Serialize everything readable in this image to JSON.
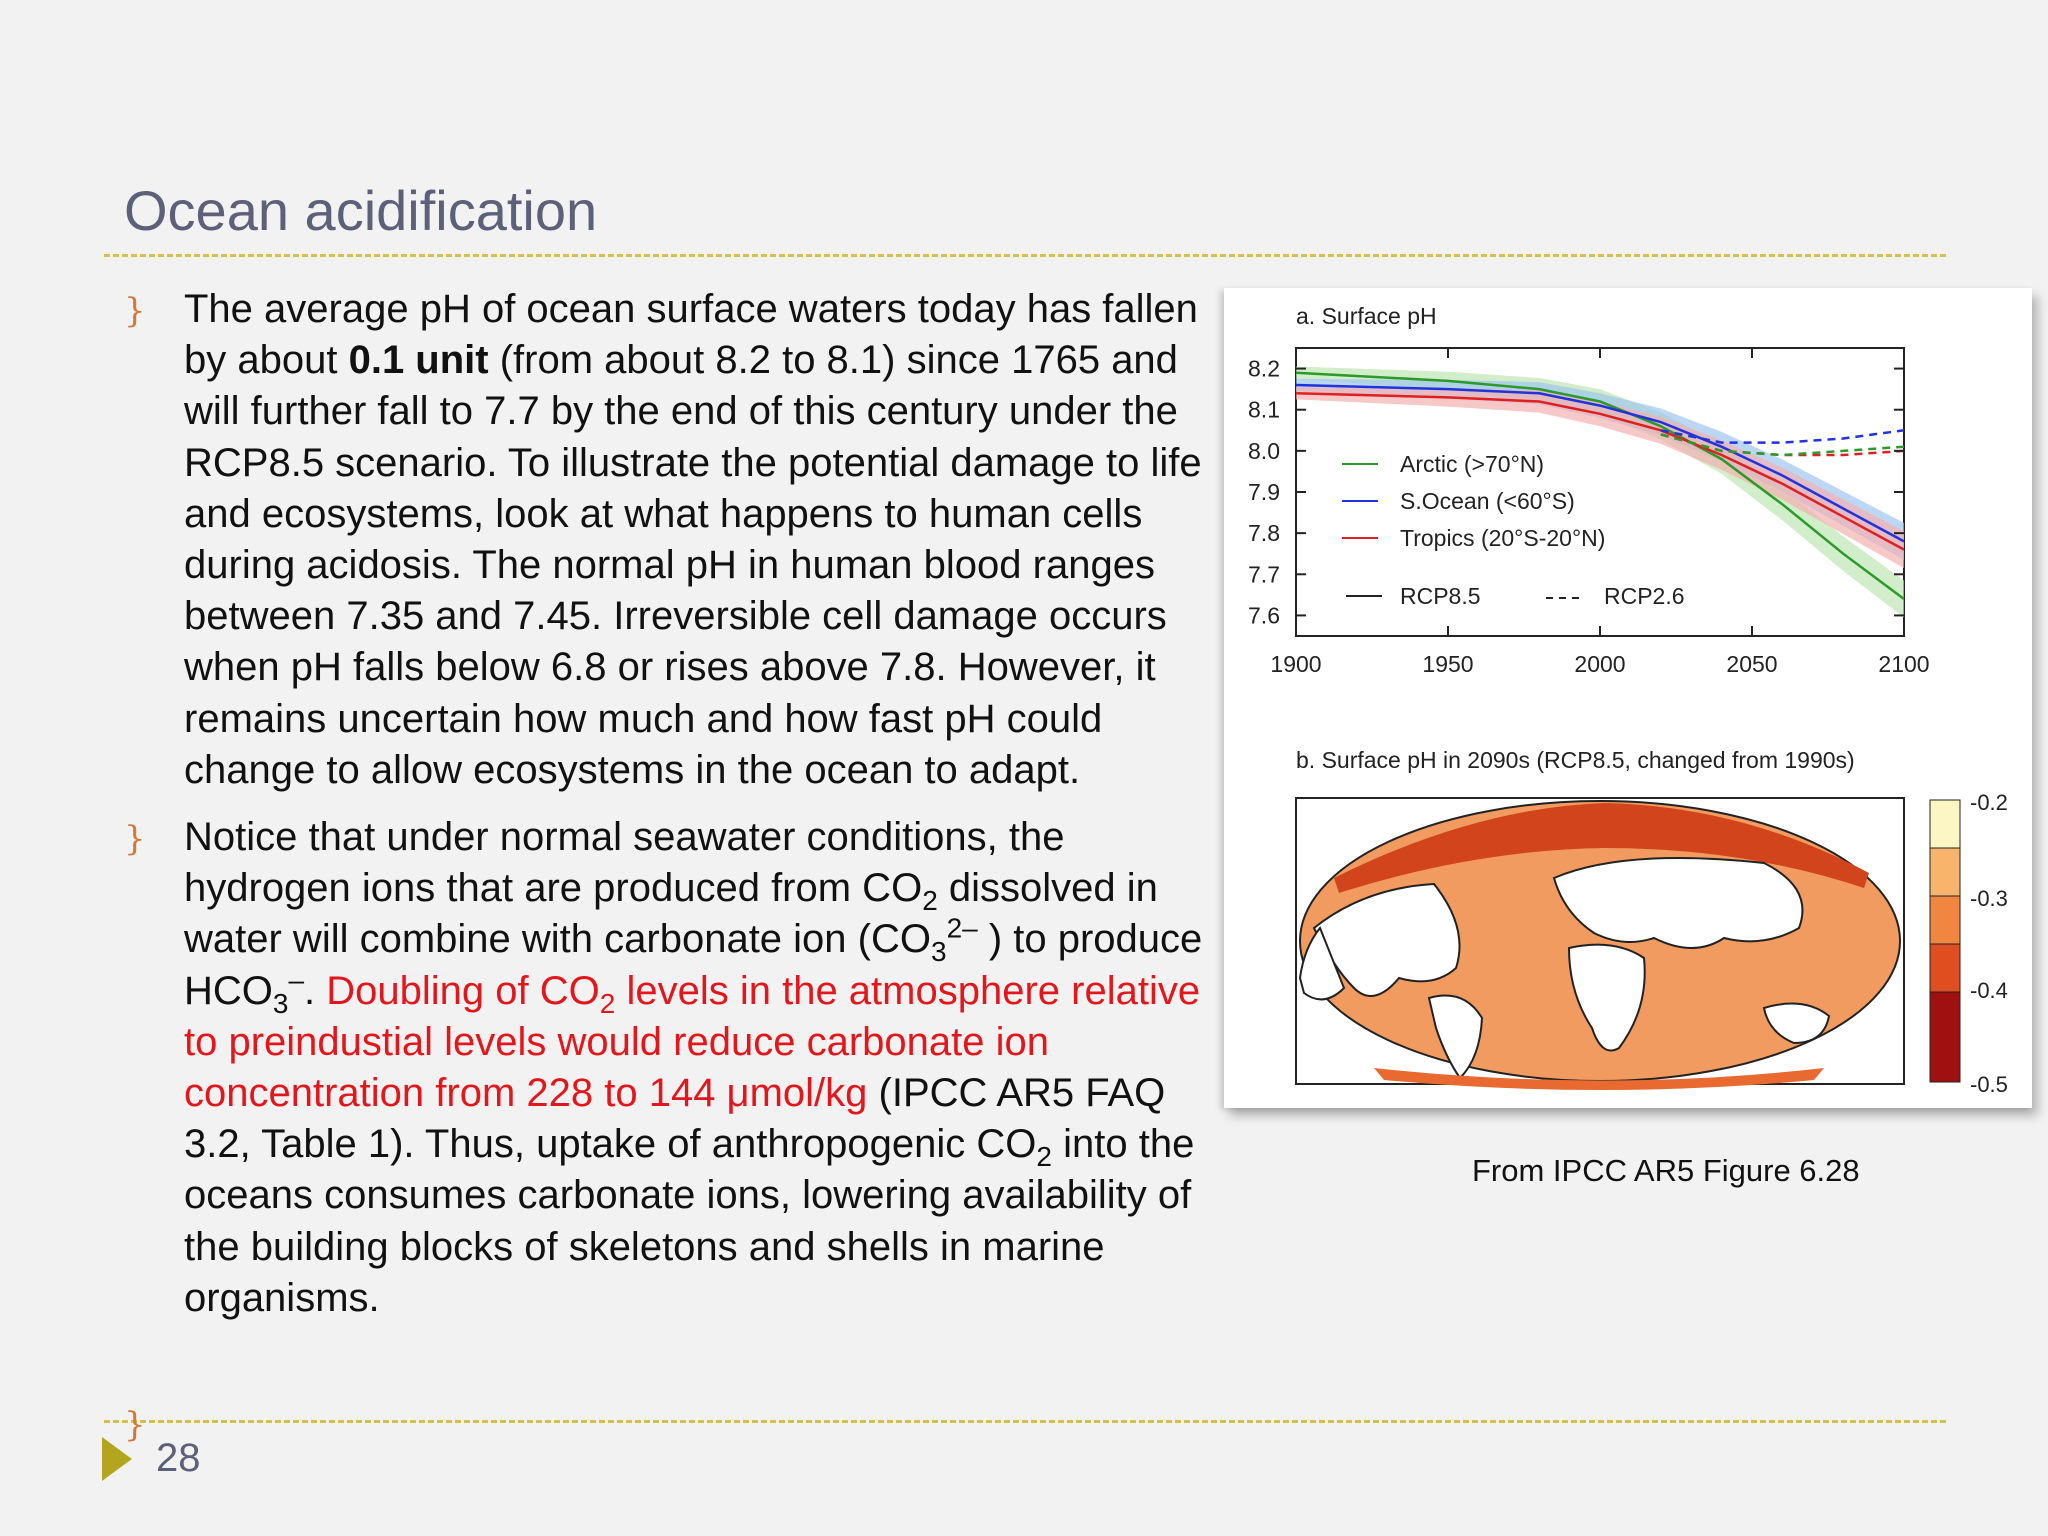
{
  "slide": {
    "title": "Ocean acidification",
    "page_number": "28",
    "bullet_marker": "}",
    "footer_marker": "}",
    "caption": "From IPCC AR5 Figure 6.28"
  },
  "bullets": {
    "b1": {
      "t1": "The average pH of ocean surface waters today has fallen by about ",
      "bold": "0.1 unit",
      "t2": " (from about 8.2 to 8.1) since 1765 and will further fall to 7.7 by the end of this century under the RCP8.5 scenario. To illustrate the potential damage to life and ecosystems,  look at what happens to human cells during acidosis. The normal pH in human blood ranges between 7.35 and 7.45. Irreversible cell damage occurs when pH falls below 6.8 or rises above 7.8.  However, it remains uncertain how much and how fast pH could change to allow ecosystems in the ocean to adapt."
    },
    "b2": {
      "t1": "Notice that under normal seawater conditions, the hydrogen ions that are produced from CO",
      "s1": "2",
      "t2": " dissolved in water will combine with carbonate ion (CO",
      "s2": "3",
      "sup1": "2–",
      "t3": " ) to produce HCO",
      "s3": "3",
      "sup2": "–",
      "t4": ". ",
      "red1": "Doubling of CO",
      "s4": "2",
      "red2": " levels in the atmosphere relative to preindustial  levels would reduce carbonate ion concentration from 228 to 144 μmol/kg",
      "t5": " (IPCC AR5 FAQ 3.2, Table 1). Thus, uptake of anthropogenic CO",
      "s5": "2",
      "t6": " into the oceans consumes carbonate ions, lowering availability of the building blocks of skeletons and shells in marine organisms."
    }
  },
  "colors": {
    "arctic": "#2a9a2a",
    "southern_ocean": "#2233dd",
    "tropics": "#e02020",
    "arctic_band": "#bfe6b2",
    "southern_band": "#9fc6ee",
    "tropics_band": "#f3b0b0"
  },
  "chart_data": [
    {
      "type": "line",
      "title": "a. Surface pH",
      "xlabel": "",
      "ylabel": "",
      "xlim": [
        1900,
        2100
      ],
      "ylim": [
        7.55,
        8.25
      ],
      "x_ticks": [
        "1900",
        "1950",
        "2000",
        "2050",
        "2100"
      ],
      "y_ticks": [
        "8.2",
        "8.1",
        "8.0",
        "7.9",
        "7.8",
        "7.7",
        "7.6"
      ],
      "legend": {
        "placement": "lower-left",
        "entries": [
          "Arctic (>70°N)",
          "S.Ocean (<60°S)",
          "Tropics (20°S-20°N)"
        ],
        "style_entries": [
          "RCP8.5",
          "RCP2.6"
        ]
      },
      "series": [
        {
          "name": "Arctic (>70°N)",
          "scenario": "RCP8.5",
          "color": "#2a9a2a",
          "dashed": false,
          "x": [
            1900,
            1950,
            1980,
            2000,
            2020,
            2040,
            2060,
            2080,
            2100
          ],
          "y": [
            8.19,
            8.17,
            8.15,
            8.12,
            8.06,
            7.98,
            7.87,
            7.75,
            7.64
          ]
        },
        {
          "name": "S.Ocean (<60°S)",
          "scenario": "RCP8.5",
          "color": "#2233dd",
          "dashed": false,
          "x": [
            1900,
            1950,
            1980,
            2000,
            2020,
            2040,
            2060,
            2080,
            2100
          ],
          "y": [
            8.16,
            8.15,
            8.14,
            8.11,
            8.07,
            8.01,
            7.94,
            7.86,
            7.78
          ]
        },
        {
          "name": "Tropics (20°S-20°N)",
          "scenario": "RCP8.5",
          "color": "#e02020",
          "dashed": false,
          "x": [
            1900,
            1950,
            1980,
            2000,
            2020,
            2040,
            2060,
            2080,
            2100
          ],
          "y": [
            8.14,
            8.13,
            8.12,
            8.09,
            8.05,
            7.99,
            7.92,
            7.84,
            7.76
          ]
        },
        {
          "name": "S.Ocean (<60°S)",
          "scenario": "RCP2.6",
          "color": "#2233dd",
          "dashed": true,
          "x": [
            2020,
            2040,
            2060,
            2080,
            2100
          ],
          "y": [
            8.05,
            8.02,
            8.02,
            8.03,
            8.05
          ]
        },
        {
          "name": "Tropics (20°S-20°N)",
          "scenario": "RCP2.6",
          "color": "#e02020",
          "dashed": true,
          "x": [
            2020,
            2040,
            2060,
            2080,
            2100
          ],
          "y": [
            8.04,
            8.0,
            7.99,
            7.99,
            8.0
          ]
        },
        {
          "name": "Arctic (>70°N)",
          "scenario": "RCP2.6",
          "color": "#2a9a2a",
          "dashed": true,
          "x": [
            2020,
            2040,
            2060,
            2080,
            2100
          ],
          "y": [
            8.04,
            8.0,
            7.99,
            8.0,
            8.01
          ]
        }
      ],
      "grid": false
    },
    {
      "type": "heatmap",
      "title": "b. Surface pH in 2090s (RCP8.5, changed from 1990s)",
      "colorbar": {
        "ticks": [
          "-0.2",
          "-0.3",
          "-0.4",
          "-0.5"
        ],
        "colors": [
          "#fbf6c4",
          "#f7b46a",
          "#f08640",
          "#e04e20",
          "#a01010"
        ]
      }
    }
  ]
}
